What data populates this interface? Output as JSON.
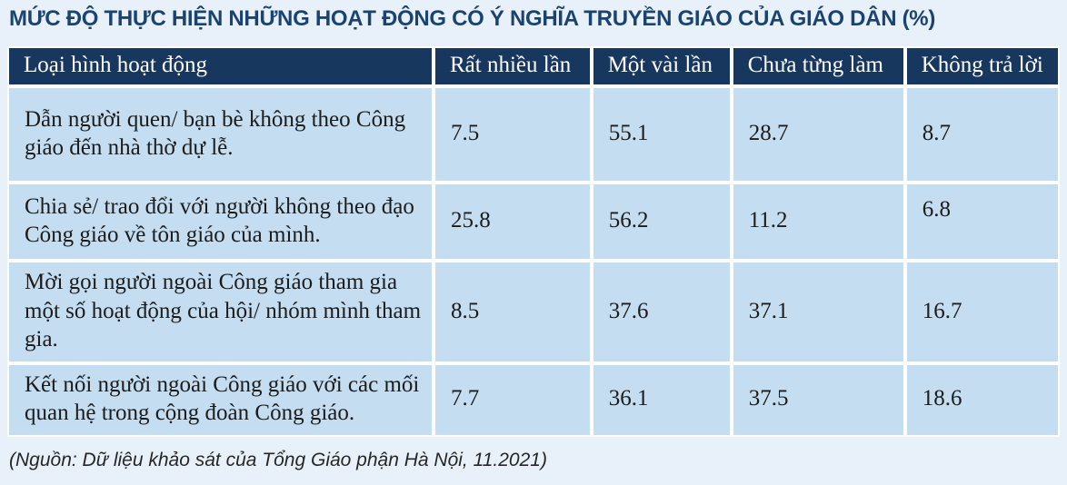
{
  "title": "MỨC ĐỘ THỰC HIỆN NHỮNG HOẠT ĐỘNG CÓ Ý NGHĨA TRUYỀN GIÁO CỦA GIÁO DÂN (%)",
  "source": "(Nguồn: Dữ liệu khảo sát của Tổng Giáo phận Hà Nội, 11.2021)",
  "table": {
    "headers": [
      "Loại hình hoạt động",
      "Rất nhiều lần",
      "Một vài lần",
      "Chưa từng làm",
      "Không trả lời"
    ],
    "rows": [
      {
        "label": "Dẫn người quen/ bạn bè không theo Công giáo đến nhà thờ dự lễ.",
        "values": [
          "7.5",
          "55.1",
          "28.7",
          "8.7"
        ]
      },
      {
        "label": "Chia sẻ/ trao đổi với người không theo đạo Công giáo về tôn giáo của mình.",
        "values": [
          "25.8",
          "56.2",
          "11.2",
          "6.8"
        ]
      },
      {
        "label": "Mời gọi người ngoài Công giáo tham gia một số hoạt động của hội/ nhóm mình tham gia.",
        "values": [
          "8.5",
          "37.6",
          "37.1",
          "16.7"
        ]
      },
      {
        "label": "Kết nối người ngoài Công giáo với các mối quan hệ trong cộng đoàn Công giáo.",
        "values": [
          "7.7",
          "36.1",
          "37.5",
          "18.6"
        ]
      }
    ]
  },
  "chart_data": {
    "type": "table",
    "title": "MỨC ĐỘ THỰC HIỆN NHỮNG HOẠT ĐỘNG CÓ Ý NGHĨA TRUYỀN GIÁO CỦA GIÁO DÂN (%)",
    "unit": "%",
    "columns": [
      "Loại hình hoạt động",
      "Rất nhiều lần",
      "Một vài lần",
      "Chưa từng làm",
      "Không trả lời"
    ],
    "rows": [
      [
        "Dẫn người quen/ bạn bè không theo Công giáo đến nhà thờ dự lễ.",
        7.5,
        55.1,
        28.7,
        8.7
      ],
      [
        "Chia sẻ/ trao đổi với người không theo đạo Công giáo về tôn giáo của mình.",
        25.8,
        56.2,
        11.2,
        6.8
      ],
      [
        "Mời gọi người ngoài Công giáo tham gia một số hoạt động của hội/ nhóm mình tham gia.",
        8.5,
        37.6,
        37.1,
        16.7
      ],
      [
        "Kết nối người ngoài Công giáo với các mối quan hệ trong cộng đoàn Công giáo.",
        7.7,
        36.1,
        37.5,
        18.6
      ]
    ],
    "source": "(Nguồn: Dữ liệu khảo sát của Tổng Giáo phận Hà Nội, 11.2021)"
  },
  "colors": {
    "page-bg": "#e8f1f9",
    "header-bg": "#17375e",
    "header-text": "#ffffff",
    "row-bg": "#c4ddf0",
    "grid-line": "#ffffff",
    "title-color": "#1b4372",
    "body-text": "#1c1c1c",
    "source-color": "#262626"
  }
}
